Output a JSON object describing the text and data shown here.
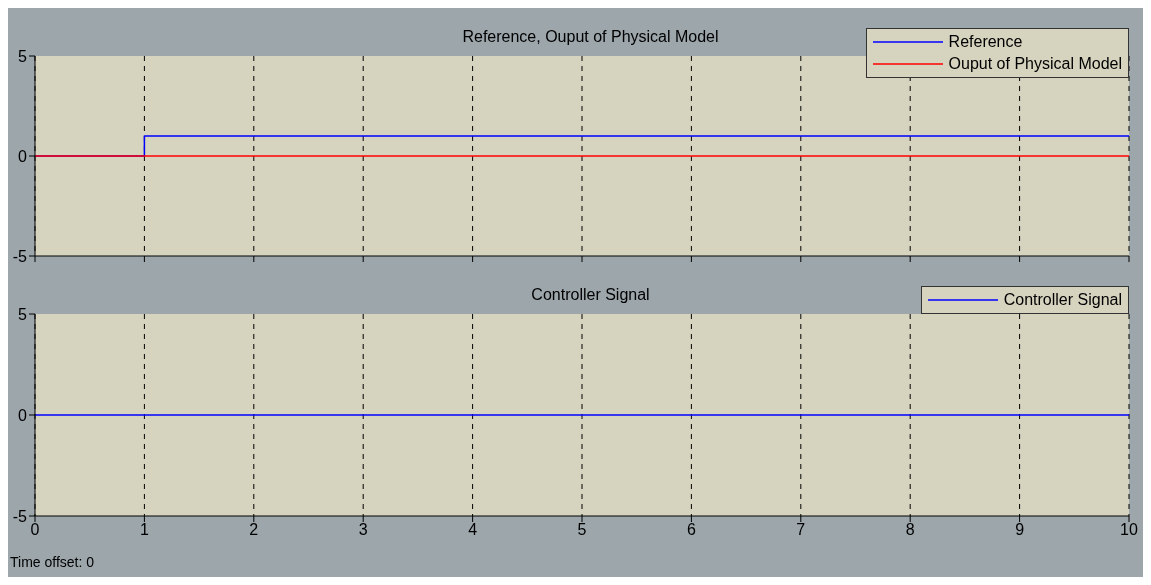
{
  "chart_data": [
    {
      "type": "step",
      "title": "Reference, Ouput of Physical Model",
      "x": [
        0,
        1,
        10
      ],
      "series": [
        {
          "name": "Reference",
          "color": "#0000ff",
          "values": [
            0,
            1,
            1
          ]
        },
        {
          "name": "Ouput of Physical Model",
          "color": "#ff0000",
          "values": [
            0,
            0,
            0
          ]
        }
      ],
      "xlim": [
        0,
        10
      ],
      "xticks": [
        0,
        1,
        2,
        3,
        4,
        5,
        6,
        7,
        8,
        9,
        10
      ],
      "ylim": [
        -5,
        5
      ],
      "yticks": [
        -5,
        0,
        5
      ],
      "grid": "x",
      "legend": "top right",
      "tick_labels": "y"
    },
    {
      "type": "step",
      "title": "Controller Signal",
      "x": [
        0,
        10
      ],
      "series": [
        {
          "name": "Controller Signal",
          "color": "#0000ff",
          "values": [
            0,
            0
          ]
        }
      ],
      "xlim": [
        0,
        10
      ],
      "xticks": [
        0,
        1,
        2,
        3,
        4,
        5,
        6,
        7,
        8,
        9,
        10
      ],
      "ylim": [
        -5,
        5
      ],
      "yticks": [
        -5,
        0,
        5
      ],
      "grid": "x",
      "legend": "top right",
      "annotations": [
        "Time offset:  0"
      ]
    }
  ]
}
